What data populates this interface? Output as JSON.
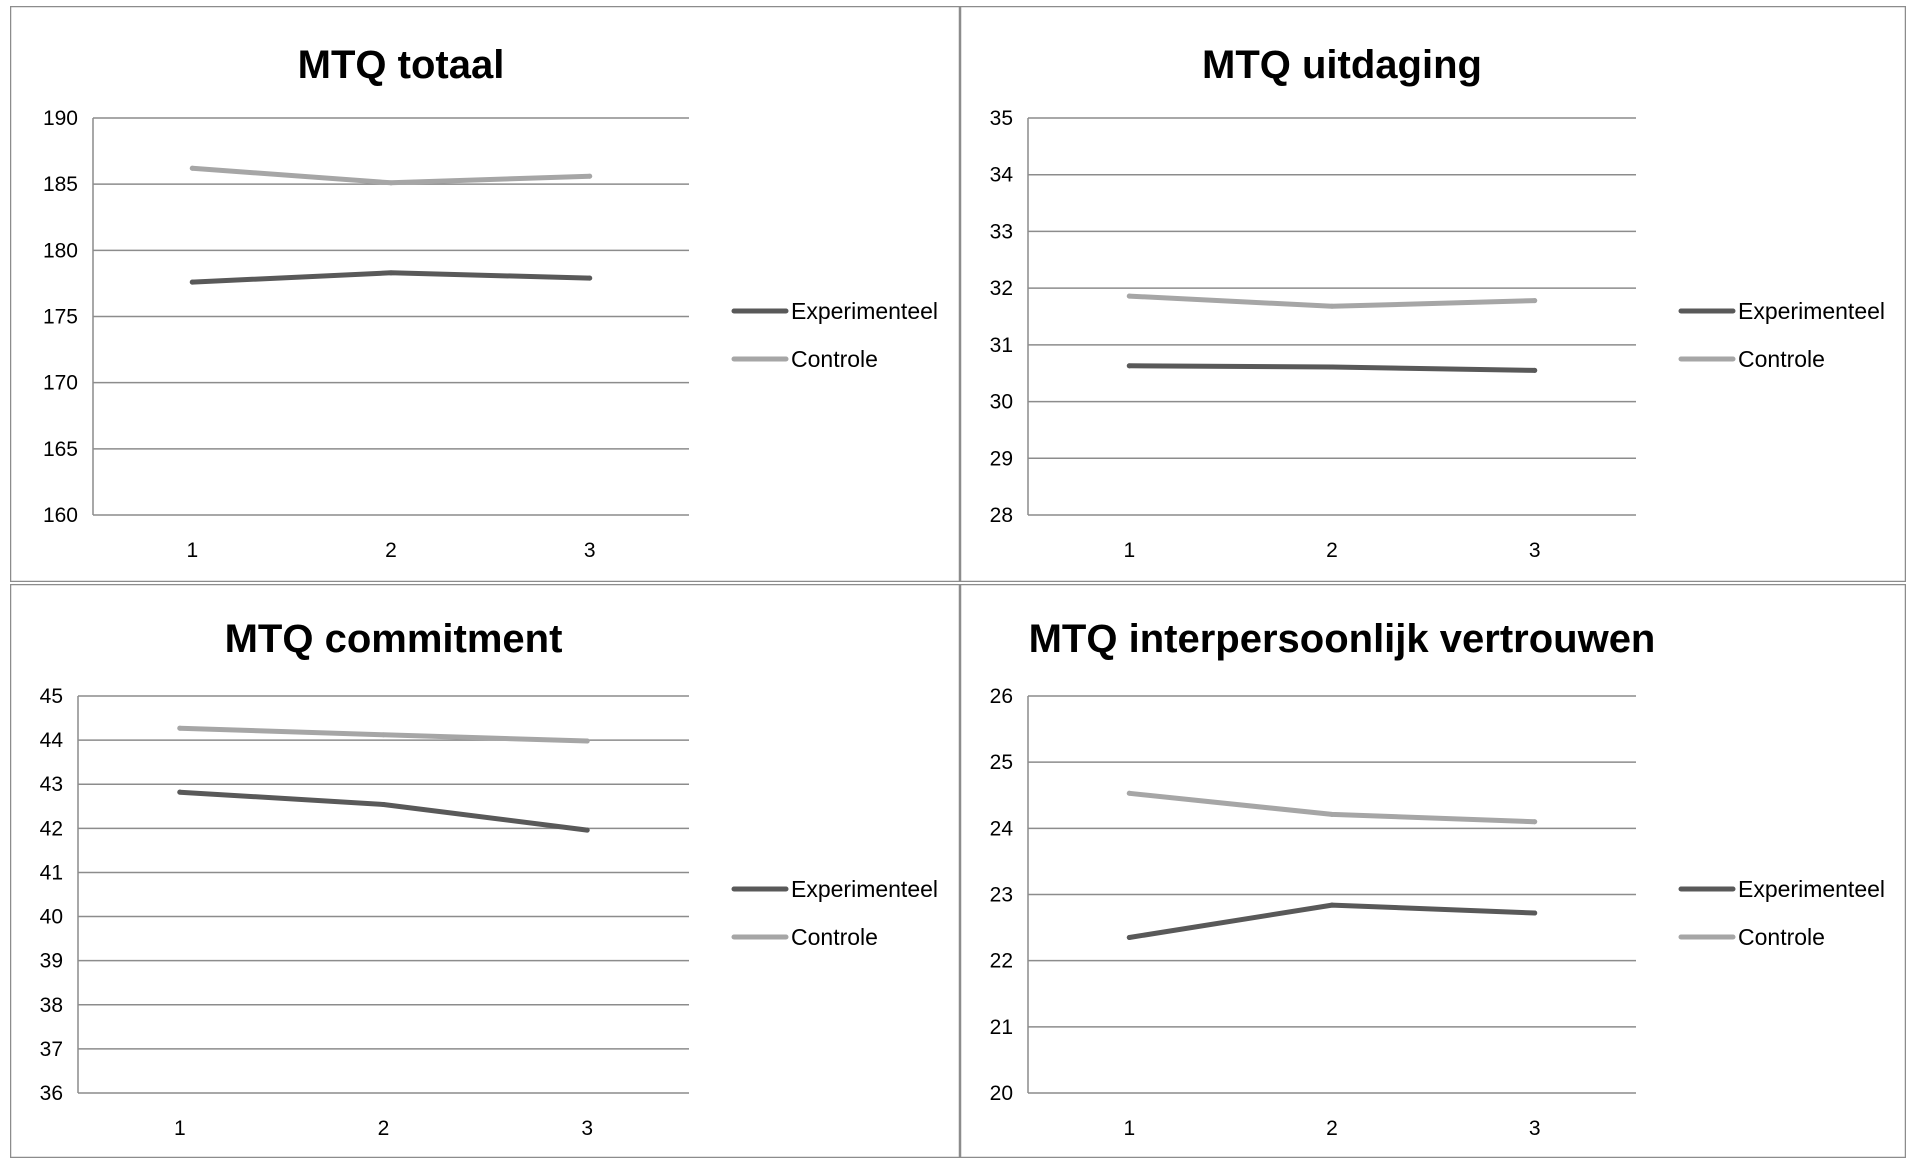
{
  "chart_data": [
    {
      "type": "line",
      "title": "MTQ totaal",
      "categories": [
        "1",
        "2",
        "3"
      ],
      "ylim": [
        160,
        190
      ],
      "ystep": 5,
      "yticks": [
        "160",
        "165",
        "170",
        "175",
        "180",
        "185",
        "190"
      ],
      "grid": true,
      "legend_position": "right",
      "series": [
        {
          "name": "Experimenteel",
          "values": [
            177.6,
            178.3,
            177.9
          ],
          "color": "#595959"
        },
        {
          "name": "Controle",
          "values": [
            186.2,
            185.1,
            185.6
          ],
          "color": "#a6a6a6"
        }
      ]
    },
    {
      "type": "line",
      "title": "MTQ uitdaging",
      "categories": [
        "1",
        "2",
        "3"
      ],
      "ylim": [
        28,
        35
      ],
      "ystep": 1,
      "yticks": [
        "28",
        "29",
        "30",
        "31",
        "32",
        "33",
        "34",
        "35"
      ],
      "grid": true,
      "legend_position": "right",
      "series": [
        {
          "name": "Experimenteel",
          "values": [
            30.63,
            30.61,
            30.55
          ],
          "color": "#595959"
        },
        {
          "name": "Controle",
          "values": [
            31.86,
            31.68,
            31.78
          ],
          "color": "#a6a6a6"
        }
      ]
    },
    {
      "type": "line",
      "title": "MTQ commitment",
      "categories": [
        "1",
        "2",
        "3"
      ],
      "ylim": [
        36,
        45
      ],
      "ystep": 1,
      "yticks": [
        "36",
        "37",
        "38",
        "39",
        "40",
        "41",
        "42",
        "43",
        "44",
        "45"
      ],
      "grid": true,
      "legend_position": "right",
      "series": [
        {
          "name": "Experimenteel",
          "values": [
            42.82,
            42.54,
            41.96
          ],
          "color": "#595959"
        },
        {
          "name": "Controle",
          "values": [
            44.27,
            44.12,
            43.98
          ],
          "color": "#a6a6a6"
        }
      ]
    },
    {
      "type": "line",
      "title": "MTQ interpersoonlijk vertrouwen",
      "categories": [
        "1",
        "2",
        "3"
      ],
      "ylim": [
        20,
        26
      ],
      "ystep": 1,
      "yticks": [
        "20",
        "21",
        "22",
        "23",
        "24",
        "25",
        "26"
      ],
      "grid": true,
      "legend_position": "right",
      "series": [
        {
          "name": "Experimenteel",
          "values": [
            22.35,
            22.84,
            22.72
          ],
          "color": "#595959"
        },
        {
          "name": "Controle",
          "values": [
            24.53,
            24.21,
            24.1
          ],
          "color": "#a6a6a6"
        }
      ]
    }
  ]
}
